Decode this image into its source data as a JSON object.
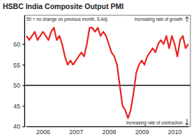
{
  "chart_data": {
    "type": "line",
    "title": "HSBC India Composite Output PMI",
    "annotations": [
      {
        "text": "50 = no change on previous month, S.Adj.",
        "y": 50
      },
      {
        "text": "Increasing rate of growth"
      },
      {
        "text": "Increasing rate of contraction"
      }
    ],
    "categories": [
      null,
      null,
      null,
      null,
      null,
      null,
      "2006",
      null,
      null,
      null,
      null,
      null,
      null,
      null,
      null,
      null,
      null,
      null,
      "2007",
      null,
      null,
      null,
      null,
      null,
      null,
      null,
      null,
      null,
      null,
      null,
      "2008",
      null,
      null,
      null,
      null,
      null,
      null,
      null,
      null,
      null,
      null,
      null,
      "2009",
      null,
      null,
      null,
      null,
      null,
      null,
      null,
      null,
      null,
      null,
      null,
      "2010",
      null,
      null,
      null,
      null,
      null
    ],
    "values": [
      62,
      61,
      62,
      63,
      61,
      62,
      63,
      62,
      61,
      63,
      64,
      61,
      62,
      60,
      57,
      55,
      56,
      55,
      56,
      57,
      58,
      57,
      60,
      64,
      64,
      63,
      64,
      62,
      63,
      62,
      60,
      58,
      57,
      55,
      50,
      45,
      44,
      42,
      44,
      48,
      53,
      55,
      56,
      55,
      57,
      58,
      59,
      58,
      60,
      61,
      60,
      62,
      59,
      62,
      60,
      57,
      61,
      62,
      59,
      60
    ],
    "color": "#e8231f",
    "ylim": [
      40,
      67
    ],
    "yticks": [
      40,
      45,
      50,
      55,
      60
    ],
    "grid": false
  }
}
